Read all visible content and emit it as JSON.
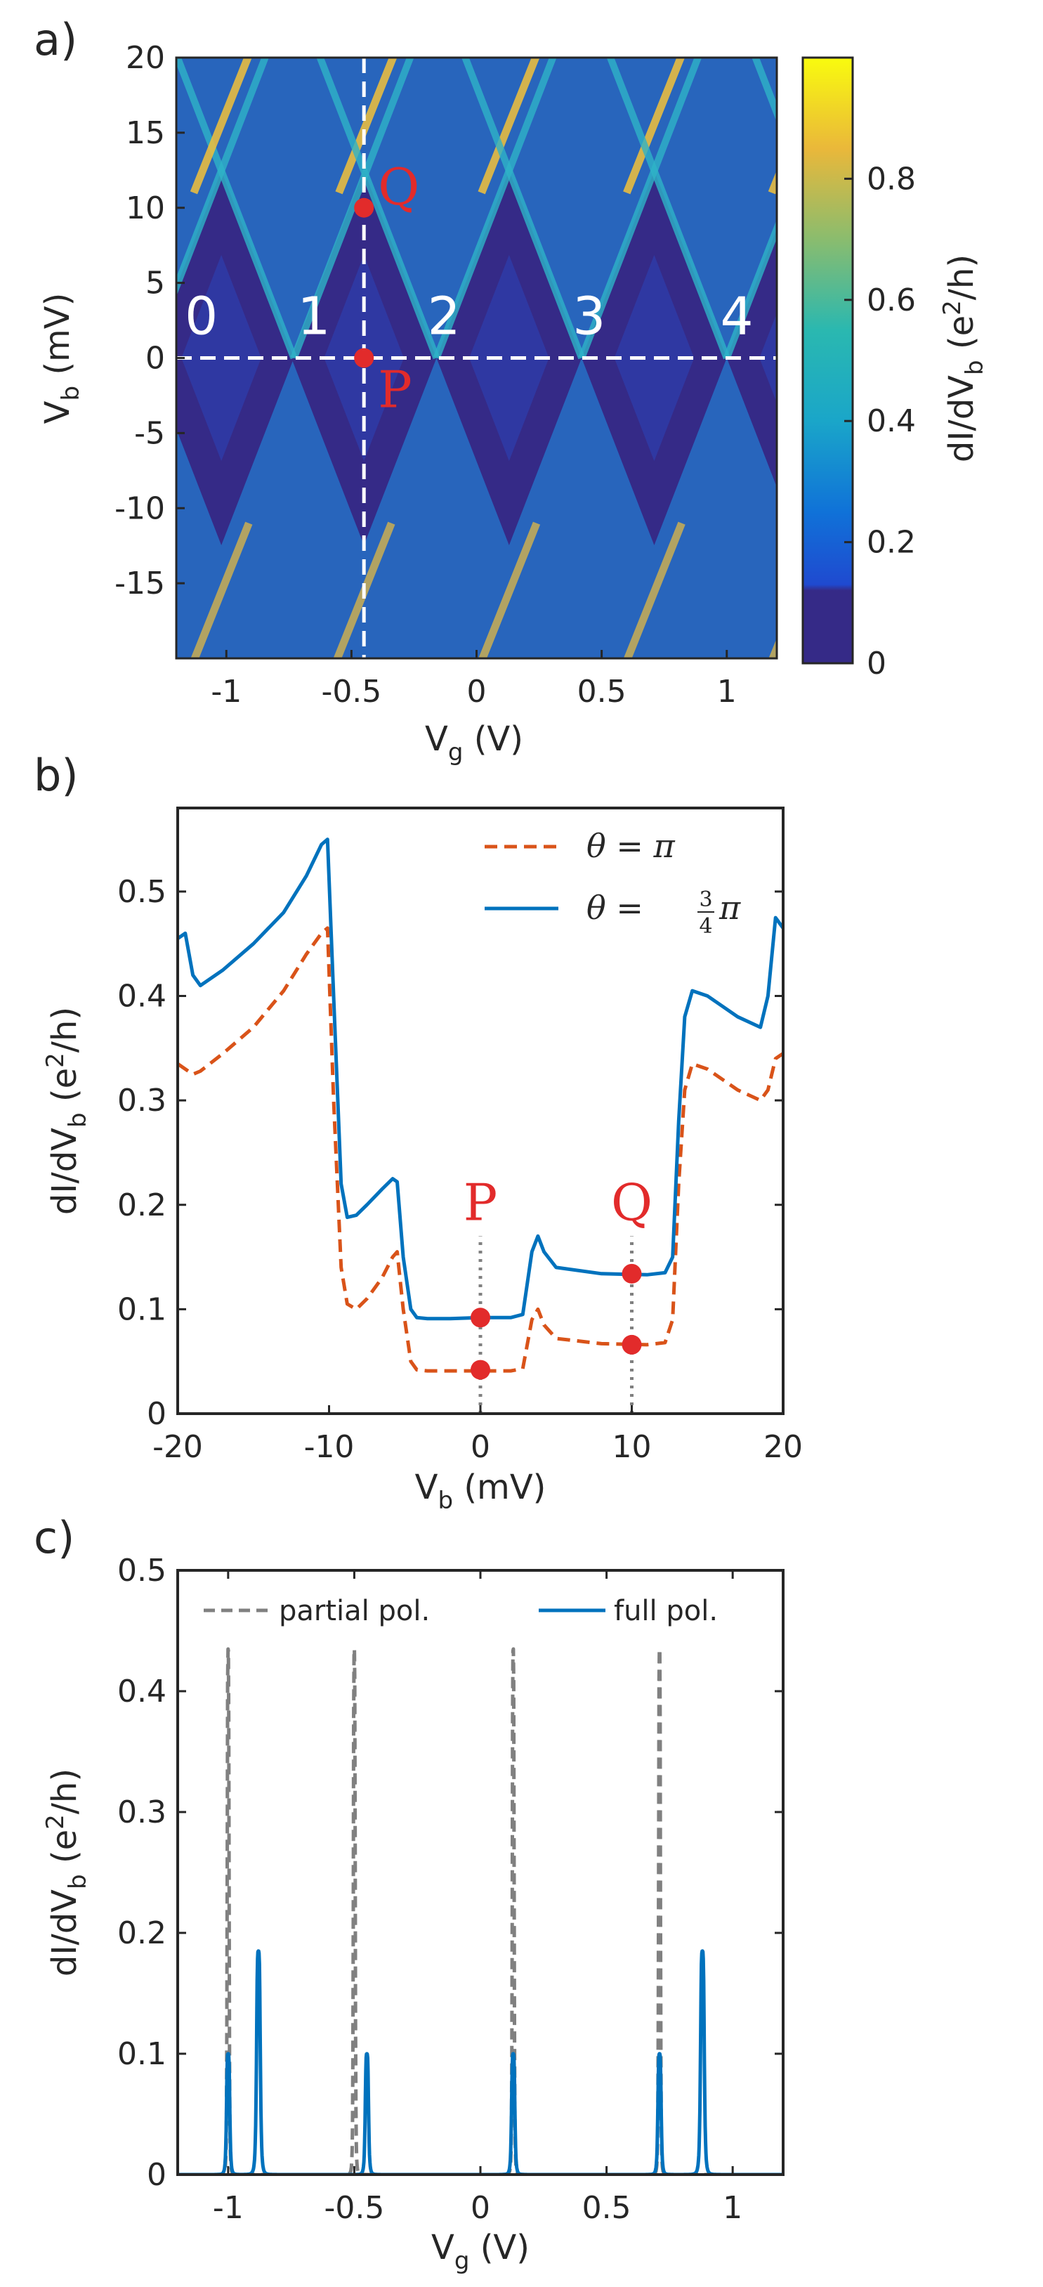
{
  "chart_data": [
    {
      "panel": "a)",
      "type": "heatmap",
      "xlabel": "V",
      "xlabel_sub": "g",
      "xlabel_unit": "(V)",
      "ylabel": "V",
      "ylabel_sub": "b",
      "ylabel_unit": "(mV)",
      "xlim": [
        -1.2,
        1.2
      ],
      "ylim": [
        -20,
        20
      ],
      "xticks": [
        "-1",
        "-0.5",
        "0",
        "0.5",
        "1"
      ],
      "xtick_values": [
        -1,
        -0.5,
        0,
        0.5,
        1
      ],
      "yticks": [
        "20",
        "15",
        "10",
        "5",
        "0",
        "-5",
        "-10",
        "-15"
      ],
      "ytick_values": [
        20,
        15,
        10,
        5,
        0,
        -5,
        -10,
        -15
      ],
      "colorbar": {
        "label": "dI/dV",
        "label_sub": "b",
        "label_unit": "(e",
        "label_sup": "2",
        "label_end": "/h)",
        "range": [
          0,
          1
        ],
        "ticks": [
          "0",
          "0.2",
          "0.4",
          "0.6",
          "0.8"
        ],
        "tick_values": [
          0,
          0.2,
          0.4,
          0.6,
          0.8
        ]
      },
      "diamond_centers_vg": [
        -1.02,
        -0.45,
        0.13,
        0.71,
        1.29
      ],
      "charge_labels": [
        {
          "text": "0",
          "vg": -1.1,
          "vb": 1.6
        },
        {
          "text": "1",
          "vg": -0.65,
          "vb": 1.6
        },
        {
          "text": "2",
          "vg": -0.13,
          "vb": 1.6
        },
        {
          "text": "3",
          "vg": 0.45,
          "vb": 1.6
        },
        {
          "text": "4",
          "vg": 1.04,
          "vb": 1.6
        }
      ],
      "cut_vertical_vg": -0.45,
      "cut_horizontal_vb": 0,
      "points": [
        {
          "label": "Q",
          "vg": -0.45,
          "vb": 10
        },
        {
          "label": "P",
          "vg": -0.45,
          "vb": 0
        }
      ]
    },
    {
      "panel": "b)",
      "type": "line",
      "xlabel": "V",
      "xlabel_sub": "b",
      "xlabel_unit": "(mV)",
      "ylabel": "dI/dV",
      "ylabel_sub": "b",
      "ylabel_unit": "(e",
      "ylabel_sup": "2",
      "ylabel_end": "/h)",
      "xlim": [
        -20,
        20
      ],
      "ylim": [
        0,
        0.58
      ],
      "xticks": [
        "-20",
        "-10",
        "0",
        "10",
        "20"
      ],
      "xtick_values": [
        -20,
        -10,
        0,
        10,
        20
      ],
      "yticks": [
        "0",
        "0.1",
        "0.2",
        "0.3",
        "0.4",
        "0.5"
      ],
      "ytick_values": [
        0,
        0.1,
        0.2,
        0.3,
        0.4,
        0.5
      ],
      "legend_position": "top-right",
      "series": [
        {
          "name": "θ = π",
          "legend_text": "θ = π",
          "style": "dashed",
          "color": "#d95319",
          "x": [
            -20,
            -19.5,
            -19,
            -18.5,
            -17,
            -15,
            -13,
            -11.5,
            -10.5,
            -10.1,
            -9.7,
            -9.2,
            -8.8,
            -8.2,
            -7.5,
            -6.5,
            -5.8,
            -5.5,
            -5.1,
            -4.6,
            -4.2,
            -3.5,
            -2,
            0,
            2,
            2.8,
            3.4,
            3.8,
            4.2,
            5,
            8,
            11,
            12.2,
            12.7,
            13.1,
            13.5,
            14,
            15,
            17,
            18.5,
            19,
            19.5,
            20
          ],
          "values": [
            0.335,
            0.33,
            0.325,
            0.328,
            0.345,
            0.37,
            0.405,
            0.44,
            0.46,
            0.465,
            0.3,
            0.14,
            0.105,
            0.1,
            0.11,
            0.13,
            0.15,
            0.155,
            0.1,
            0.05,
            0.042,
            0.041,
            0.041,
            0.041,
            0.041,
            0.043,
            0.09,
            0.1,
            0.085,
            0.072,
            0.067,
            0.066,
            0.068,
            0.09,
            0.22,
            0.31,
            0.335,
            0.33,
            0.31,
            0.3,
            0.31,
            0.34,
            0.345
          ]
        },
        {
          "name": "θ = 3/4 π",
          "legend_text": "θ = ",
          "legend_frac_num": "3",
          "legend_frac_den": "4",
          "legend_tail": "π",
          "style": "solid",
          "color": "#0072bd",
          "x": [
            -20,
            -19.5,
            -19,
            -18.5,
            -17,
            -15,
            -13,
            -11.5,
            -10.5,
            -10.1,
            -9.7,
            -9.2,
            -8.8,
            -8.2,
            -7.5,
            -6.5,
            -5.8,
            -5.5,
            -5.1,
            -4.6,
            -4.2,
            -3.5,
            -2,
            0,
            2,
            2.8,
            3.4,
            3.8,
            4.2,
            5,
            8,
            11,
            12.2,
            12.7,
            13.1,
            13.5,
            14,
            15,
            17,
            18.5,
            19,
            19.5,
            20
          ],
          "values": [
            0.455,
            0.46,
            0.42,
            0.41,
            0.425,
            0.45,
            0.48,
            0.515,
            0.545,
            0.55,
            0.4,
            0.22,
            0.188,
            0.19,
            0.2,
            0.215,
            0.225,
            0.222,
            0.15,
            0.1,
            0.092,
            0.091,
            0.091,
            0.092,
            0.092,
            0.095,
            0.155,
            0.17,
            0.155,
            0.14,
            0.134,
            0.133,
            0.135,
            0.15,
            0.28,
            0.38,
            0.405,
            0.4,
            0.38,
            0.37,
            0.4,
            0.475,
            0.465
          ]
        }
      ],
      "points": [
        {
          "label": "P",
          "x": 0,
          "values": [
            0.092,
            0.042
          ]
        },
        {
          "label": "Q",
          "x": 10,
          "values": [
            0.134,
            0.066
          ]
        }
      ]
    },
    {
      "panel": "c)",
      "type": "line",
      "xlabel": "V",
      "xlabel_sub": "g",
      "xlabel_unit": "(V)",
      "ylabel": "dI/dV",
      "ylabel_sub": "b",
      "ylabel_unit": "(e",
      "ylabel_sup": "2",
      "ylabel_end": "/h)",
      "xlim": [
        -1.2,
        1.2
      ],
      "ylim": [
        0,
        0.5
      ],
      "xticks": [
        "-1",
        "-0.5",
        "0",
        "0.5",
        "1"
      ],
      "xtick_values": [
        -1,
        -0.5,
        0,
        0.5,
        1
      ],
      "yticks": [
        "0",
        "0.1",
        "0.2",
        "0.3",
        "0.4",
        "0.5"
      ],
      "ytick_values": [
        0,
        0.1,
        0.2,
        0.3,
        0.4,
        0.5
      ],
      "legend_position": "top",
      "series": [
        {
          "name": "partial pol.",
          "style": "dashed",
          "color": "#808080",
          "peaks": [
            {
              "center": -1.0,
              "height": 0.435,
              "width": 0.004
            },
            {
              "center": -0.5,
              "height": 0.435,
              "width": 0.004
            },
            {
              "center": 0.13,
              "height": 0.435,
              "width": 0.004
            },
            {
              "center": 0.71,
              "height": 0.435,
              "width": 0.004
            }
          ]
        },
        {
          "name": "full pol.",
          "style": "solid",
          "color": "#0072bd",
          "peaks": [
            {
              "center": -1.0,
              "height": 0.1,
              "width": 0.007
            },
            {
              "center": -0.88,
              "height": 0.185,
              "width": 0.008
            },
            {
              "center": -0.45,
              "height": 0.1,
              "width": 0.007
            },
            {
              "center": 0.13,
              "height": 0.1,
              "width": 0.007
            },
            {
              "center": 0.71,
              "height": 0.1,
              "width": 0.007
            },
            {
              "center": 0.88,
              "height": 0.185,
              "width": 0.008
            }
          ]
        }
      ]
    }
  ],
  "colors": {
    "axis": "#262626",
    "marker": "#e22b2b",
    "cut_line": "#ffffff",
    "dotted": "#808080"
  }
}
